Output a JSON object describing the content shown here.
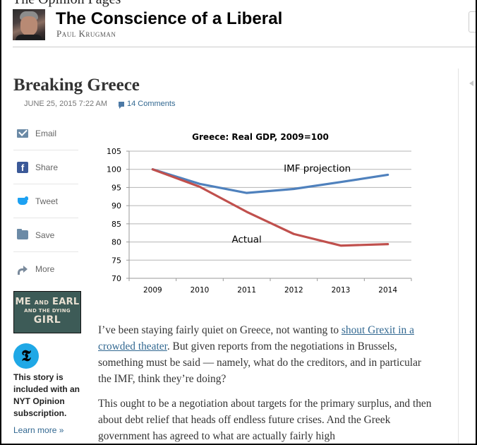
{
  "header": {
    "section_label": "The Opinion Pages",
    "blog_title": "The Conscience of a Liberal",
    "author": "Paul Krugman"
  },
  "article": {
    "headline": "Breaking Greece",
    "dateline": "JUNE 25, 2015 7:22 AM",
    "comments_label": "14 Comments",
    "paragraphs": [
      {
        "before_link": "I’ve been staying fairly quiet on Greece, not wanting to ",
        "link_text": "shout Grexit in a crowded theater",
        "after_link": ". But given reports from the negotiations in Brussels, something must be said — namely, what do the creditors, and in particular the IMF, think they’re doing?"
      },
      {
        "text": "This ought to be a negotiation about targets for the primary surplus, and then about debt relief that heads off endless future crises. And the Greek government has agreed to what are actually fairly high"
      }
    ]
  },
  "share_tools": [
    {
      "label": "Email",
      "icon": "email-icon"
    },
    {
      "label": "Share",
      "icon": "facebook-icon"
    },
    {
      "label": "Tweet",
      "icon": "twitter-icon"
    },
    {
      "label": "Save",
      "icon": "save-folder-icon"
    },
    {
      "label": "More",
      "icon": "share-arrow-icon"
    }
  ],
  "promo": {
    "line1_big_a": "ME",
    "line1_small": "AND",
    "line1_big_b": "EARL",
    "line2": "AND THE DYING",
    "line3": "GIRL"
  },
  "subscription": {
    "badge_glyph": "𝕿",
    "text": "This story is included with an NYT Opinion subscription.",
    "learn_more": "Learn more »"
  },
  "colors": {
    "link": "#326891",
    "imf_line": "#4f81bd",
    "actual_line": "#c0504d",
    "promo_bg": "#3d5b57",
    "nyt_badge": "#1fa8e6"
  },
  "chart_data": {
    "type": "line",
    "title": "Greece: Real GDP, 2009=100",
    "xlabel": "",
    "ylabel": "",
    "categories": [
      "2009",
      "2010",
      "2011",
      "2012",
      "2013",
      "2014"
    ],
    "ylim": [
      70,
      105
    ],
    "yticks": [
      70,
      75,
      80,
      85,
      90,
      95,
      100,
      105
    ],
    "grid": true,
    "legend": "none (inline labels)",
    "series": [
      {
        "name": "IMF projection",
        "color": "#4f81bd",
        "values": [
          100,
          96,
          93.5,
          94.6,
          96.5,
          98.5
        ]
      },
      {
        "name": "Actual",
        "color": "#c0504d",
        "values": [
          100,
          95.2,
          88.3,
          82.2,
          79,
          79.4
        ]
      }
    ],
    "annotations": [
      {
        "text": "IMF projection",
        "series": "IMF projection",
        "near_category": "2012.5",
        "near_value": 100.3
      },
      {
        "text": "Actual",
        "series": "Actual",
        "near_category": "2011",
        "near_value": 80.8
      }
    ]
  }
}
